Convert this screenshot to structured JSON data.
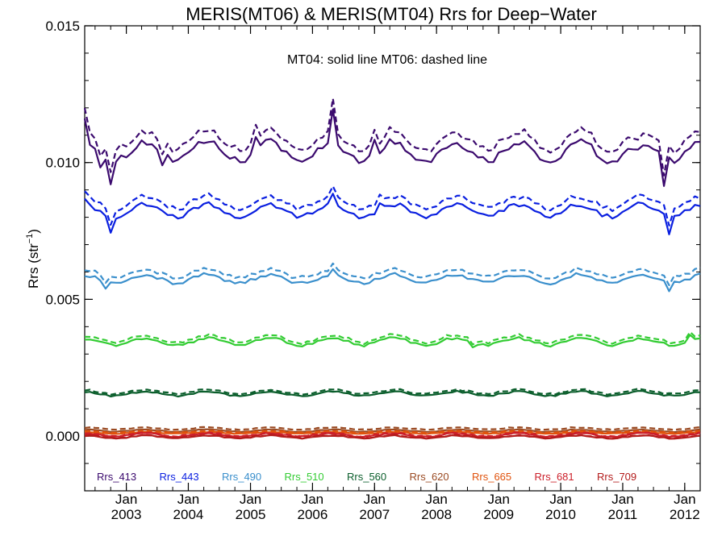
{
  "chart_data": {
    "type": "line",
    "title": "MERIS(MT06) & MERIS(MT04)  Rrs for Deep−Water",
    "annotation": "MT04: solid line   MT06: dashed line",
    "ylabel": "Rrs (str",
    "ylabel_sup": "−1",
    "ylabel_close": ")",
    "ylim": [
      -0.002,
      0.015
    ],
    "yticks": [
      0.0,
      0.005,
      0.01,
      0.015
    ],
    "ytick_labels": [
      "0.000",
      "0.005",
      "0.010",
      "0.015"
    ],
    "xlim": [
      "2002-05-01",
      "2012-04-01"
    ],
    "xtick_dates": [
      "2003-01-01",
      "2004-01-01",
      "2005-01-01",
      "2006-01-01",
      "2007-01-01",
      "2008-01-01",
      "2009-01-01",
      "2010-01-01",
      "2011-01-01",
      "2012-01-01"
    ],
    "xtick_month": "Jan",
    "xtick_years": [
      "2003",
      "2004",
      "2005",
      "2006",
      "2007",
      "2008",
      "2009",
      "2010",
      "2011",
      "2012"
    ],
    "line_styles": {
      "MT04": "solid",
      "MT06": "dashed"
    },
    "grid": false,
    "legend_position": "bottom-inside",
    "series": [
      {
        "name": "Rrs_413",
        "color": "#3b0a6e",
        "base": 0.0104,
        "amp": 0.00035,
        "offset": 0.0004,
        "anomalies": [
          [
            "2002-05-01",
            0.001
          ],
          [
            "2002-08-01",
            -0.0004
          ],
          [
            "2002-10-01",
            -0.0008
          ],
          [
            "2003-08-01",
            -0.0004
          ],
          [
            "2005-02-01",
            0.0005
          ],
          [
            "2006-05-01",
            0.0012
          ],
          [
            "2007-01-01",
            0.0006
          ],
          [
            "2011-04-01",
            -0.0003
          ],
          [
            "2011-09-01",
            -0.001
          ],
          [
            "2012-01-01",
            0.0002
          ]
        ]
      },
      {
        "name": "Rrs_443",
        "color": "#0a1fe0",
        "base": 0.00825,
        "amp": 0.00022,
        "offset": 0.0003,
        "anomalies": [
          [
            "2002-05-01",
            0.0003
          ],
          [
            "2002-10-01",
            -0.0006
          ],
          [
            "2006-05-01",
            0.0004
          ],
          [
            "2007-02-01",
            0.0002
          ],
          [
            "2011-10-01",
            -0.0007
          ]
        ]
      },
      {
        "name": "Rrs_490",
        "color": "#3a8fcc",
        "base": 0.00575,
        "amp": 0.00016,
        "offset": 0.0002,
        "anomalies": [
          [
            "2002-09-01",
            -0.0002
          ],
          [
            "2006-05-01",
            0.0002
          ],
          [
            "2011-10-01",
            -0.0003
          ]
        ]
      },
      {
        "name": "Rrs_510",
        "color": "#33cc33",
        "base": 0.00345,
        "amp": 0.00013,
        "offset": 0.0001,
        "anomalies": [
          [
            "2008-08-01",
            -0.0002
          ],
          [
            "2012-02-01",
            0.0002
          ]
        ]
      },
      {
        "name": "Rrs_560",
        "color": "#0b5e2c",
        "base": 0.00155,
        "amp": 8e-05,
        "offset": 7e-05,
        "anomalies": []
      },
      {
        "name": "Rrs_620",
        "color": "#9a4a22",
        "base": 0.0002,
        "amp": 4e-05,
        "offset": 8e-05,
        "anomalies": []
      },
      {
        "name": "Rrs_665",
        "color": "#e0520c",
        "base": 0.00012,
        "amp": 3e-05,
        "offset": 4e-05,
        "anomalies": []
      },
      {
        "name": "Rrs_681",
        "color": "#cc1f2a",
        "base": 4e-05,
        "amp": 6e-05,
        "offset": 2e-05,
        "anomalies": []
      },
      {
        "name": "Rrs_709",
        "color": "#b31a1a",
        "base": -3e-05,
        "amp": 5e-05,
        "offset": 1e-05,
        "anomalies": []
      }
    ]
  }
}
